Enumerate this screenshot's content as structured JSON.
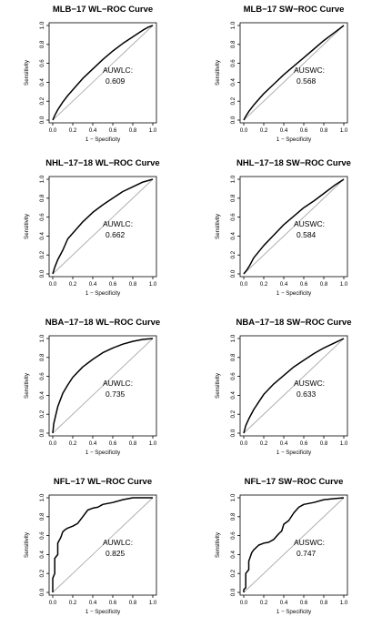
{
  "chart_data": [
    {
      "type": "line",
      "title": "MLB−17 WL−ROC Curve",
      "xlabel": "1 − Specificity",
      "ylabel": "Sensitivity",
      "xlim": [
        0,
        1
      ],
      "ylim": [
        0,
        1
      ],
      "xticks": [
        "0.0",
        "0.2",
        "0.4",
        "0.6",
        "0.8",
        "1.0"
      ],
      "yticks": [
        "0.0",
        "0.2",
        "0.4",
        "0.6",
        "0.8",
        "1.0"
      ],
      "annotation_label": "AUWLC:",
      "annotation_value": "0.609",
      "series": [
        {
          "x": [
            0,
            0.02,
            0.05,
            0.1,
            0.15,
            0.2,
            0.3,
            0.4,
            0.5,
            0.6,
            0.7,
            0.8,
            0.9,
            0.95,
            1.0
          ],
          "y": [
            0,
            0.05,
            0.11,
            0.19,
            0.26,
            0.32,
            0.44,
            0.54,
            0.64,
            0.73,
            0.81,
            0.88,
            0.95,
            0.98,
            1.0
          ]
        },
        {
          "x": [
            0,
            1
          ],
          "y": [
            0,
            1
          ]
        }
      ]
    },
    {
      "type": "line",
      "title": "MLB−17 SW−ROC Curve",
      "xlabel": "1 − Specificity",
      "ylabel": "Sensitivity",
      "xlim": [
        0,
        1
      ],
      "ylim": [
        0,
        1
      ],
      "xticks": [
        "0.0",
        "0.2",
        "0.4",
        "0.6",
        "0.8",
        "1.0"
      ],
      "yticks": [
        "0.0",
        "0.2",
        "0.4",
        "0.6",
        "0.8",
        "1.0"
      ],
      "annotation_label": "AUSWC:",
      "annotation_value": "0.568",
      "series": [
        {
          "x": [
            0,
            0.02,
            0.05,
            0.1,
            0.2,
            0.3,
            0.4,
            0.5,
            0.6,
            0.7,
            0.8,
            0.9,
            0.95,
            1.0
          ],
          "y": [
            0,
            0.04,
            0.09,
            0.16,
            0.28,
            0.38,
            0.48,
            0.57,
            0.66,
            0.75,
            0.84,
            0.92,
            0.96,
            1.0
          ]
        },
        {
          "x": [
            0,
            1
          ],
          "y": [
            0,
            1
          ]
        }
      ]
    },
    {
      "type": "line",
      "title": "NHL−17−18 WL−ROC Curve",
      "xlabel": "1 − Specificity",
      "ylabel": "Sensitivity",
      "xlim": [
        0,
        1
      ],
      "ylim": [
        0,
        1
      ],
      "xticks": [
        "0.0",
        "0.2",
        "0.4",
        "0.6",
        "0.8",
        "1.0"
      ],
      "yticks": [
        "0.0",
        "0.2",
        "0.4",
        "0.6",
        "0.8",
        "1.0"
      ],
      "annotation_label": "AUWLC:",
      "annotation_value": "0.662",
      "series": [
        {
          "x": [
            0,
            0.02,
            0.05,
            0.1,
            0.15,
            0.2,
            0.3,
            0.4,
            0.5,
            0.6,
            0.7,
            0.8,
            0.9,
            1.0
          ],
          "y": [
            0,
            0.07,
            0.15,
            0.25,
            0.37,
            0.43,
            0.55,
            0.65,
            0.73,
            0.8,
            0.87,
            0.92,
            0.97,
            1.0
          ]
        },
        {
          "x": [
            0,
            1
          ],
          "y": [
            0,
            1
          ]
        }
      ]
    },
    {
      "type": "line",
      "title": "NHL−17−18 SW−ROC Curve",
      "xlabel": "1 − Specificity",
      "ylabel": "Sensitivity",
      "xlim": [
        0,
        1
      ],
      "ylim": [
        0,
        1
      ],
      "xticks": [
        "0.0",
        "0.2",
        "0.4",
        "0.6",
        "0.8",
        "1.0"
      ],
      "yticks": [
        "0.0",
        "0.2",
        "0.4",
        "0.6",
        "0.8",
        "1.0"
      ],
      "annotation_label": "AUSWC:",
      "annotation_value": "0.584",
      "series": [
        {
          "x": [
            0,
            0.03,
            0.06,
            0.1,
            0.2,
            0.3,
            0.4,
            0.5,
            0.6,
            0.7,
            0.8,
            0.9,
            1.0
          ],
          "y": [
            0,
            0.04,
            0.09,
            0.17,
            0.3,
            0.41,
            0.52,
            0.61,
            0.7,
            0.77,
            0.85,
            0.93,
            1.0
          ]
        },
        {
          "x": [
            0,
            1
          ],
          "y": [
            0,
            1
          ]
        }
      ]
    },
    {
      "type": "line",
      "title": "NBA−17−18 WL−ROC Curve",
      "xlabel": "1 − Specificity",
      "ylabel": "Sensitivity",
      "xlim": [
        0,
        1
      ],
      "ylim": [
        0,
        1
      ],
      "xticks": [
        "0.0",
        "0.2",
        "0.4",
        "0.6",
        "0.8",
        "1.0"
      ],
      "yticks": [
        "0.0",
        "0.2",
        "0.4",
        "0.6",
        "0.8",
        "1.0"
      ],
      "annotation_label": "AUWLC:",
      "annotation_value": "0.735",
      "series": [
        {
          "x": [
            0,
            0.01,
            0.03,
            0.05,
            0.1,
            0.15,
            0.2,
            0.3,
            0.4,
            0.5,
            0.6,
            0.7,
            0.8,
            0.9,
            1.0
          ],
          "y": [
            0,
            0.1,
            0.19,
            0.28,
            0.42,
            0.51,
            0.59,
            0.7,
            0.78,
            0.85,
            0.9,
            0.94,
            0.97,
            0.99,
            1.0
          ]
        },
        {
          "x": [
            0,
            1
          ],
          "y": [
            0,
            1
          ]
        }
      ]
    },
    {
      "type": "line",
      "title": "NBA−17−18 SW−ROC Curve",
      "xlabel": "1 − Specificity",
      "ylabel": "Sensitivity",
      "xlim": [
        0,
        1
      ],
      "ylim": [
        0,
        1
      ],
      "xticks": [
        "0.0",
        "0.2",
        "0.4",
        "0.6",
        "0.8",
        "1.0"
      ],
      "yticks": [
        "0.0",
        "0.2",
        "0.4",
        "0.6",
        "0.8",
        "1.0"
      ],
      "annotation_label": "AUSWC:",
      "annotation_value": "0.633",
      "series": [
        {
          "x": [
            0,
            0.02,
            0.05,
            0.1,
            0.15,
            0.2,
            0.3,
            0.4,
            0.5,
            0.6,
            0.7,
            0.8,
            0.9,
            1.0
          ],
          "y": [
            0,
            0.08,
            0.15,
            0.25,
            0.33,
            0.41,
            0.52,
            0.61,
            0.7,
            0.77,
            0.84,
            0.9,
            0.95,
            1.0
          ]
        },
        {
          "x": [
            0,
            1
          ],
          "y": [
            0,
            1
          ]
        }
      ]
    },
    {
      "type": "line",
      "title": "NFL−17 WL−ROC Curve",
      "xlabel": "1 − Specificity",
      "ylabel": "Sensitivity",
      "xlim": [
        0,
        1
      ],
      "ylim": [
        0,
        1
      ],
      "xticks": [
        "0.0",
        "0.2",
        "0.4",
        "0.6",
        "0.8",
        "1.0"
      ],
      "yticks": [
        "0.0",
        "0.2",
        "0.4",
        "0.6",
        "0.8",
        "1.0"
      ],
      "annotation_label": "AUWLC:",
      "annotation_value": "0.825",
      "series": [
        {
          "x": [
            0,
            0.0,
            0.02,
            0.02,
            0.05,
            0.05,
            0.08,
            0.1,
            0.12,
            0.15,
            0.2,
            0.25,
            0.3,
            0.35,
            0.4,
            0.45,
            0.5,
            0.6,
            0.7,
            0.8,
            0.9,
            1.0
          ],
          "y": [
            0,
            0.15,
            0.2,
            0.36,
            0.4,
            0.52,
            0.58,
            0.64,
            0.66,
            0.68,
            0.7,
            0.73,
            0.8,
            0.87,
            0.89,
            0.9,
            0.93,
            0.95,
            0.98,
            1.0,
            1.0,
            1.0
          ]
        },
        {
          "x": [
            0,
            1
          ],
          "y": [
            0,
            1
          ]
        }
      ]
    },
    {
      "type": "line",
      "title": "NFL−17 SW−ROC Curve",
      "xlabel": "1 − Specificity",
      "ylabel": "Sensitivity",
      "xlim": [
        0,
        1
      ],
      "ylim": [
        0,
        1
      ],
      "xticks": [
        "0.0",
        "0.2",
        "0.4",
        "0.6",
        "0.8",
        "1.0"
      ],
      "yticks": [
        "0.0",
        "0.2",
        "0.4",
        "0.6",
        "0.8",
        "1.0"
      ],
      "annotation_label": "AUSWC:",
      "annotation_value": "0.747",
      "series": [
        {
          "x": [
            0,
            0.0,
            0.02,
            0.02,
            0.05,
            0.05,
            0.08,
            0.1,
            0.15,
            0.2,
            0.25,
            0.3,
            0.35,
            0.38,
            0.4,
            0.45,
            0.5,
            0.55,
            0.6,
            0.7,
            0.8,
            0.9,
            1.0
          ],
          "y": [
            0,
            0.03,
            0.05,
            0.2,
            0.24,
            0.33,
            0.42,
            0.45,
            0.5,
            0.52,
            0.53,
            0.56,
            0.62,
            0.65,
            0.72,
            0.76,
            0.84,
            0.9,
            0.93,
            0.95,
            0.98,
            0.99,
            1.0
          ]
        },
        {
          "x": [
            0,
            1
          ],
          "y": [
            0,
            1
          ]
        }
      ]
    }
  ]
}
